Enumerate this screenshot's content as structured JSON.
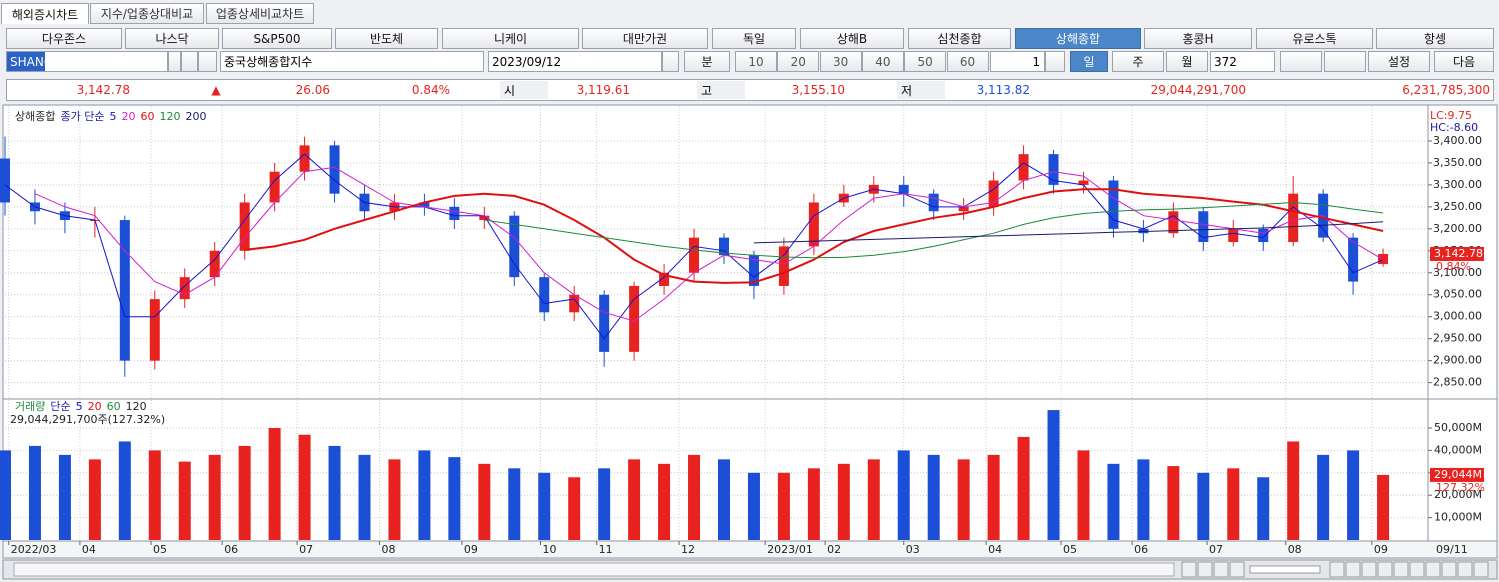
{
  "tabs": [
    "해외증시차트",
    "지수/업종상대비교",
    "업종상세비교차트"
  ],
  "indices": [
    {
      "label": "다우존스"
    },
    {
      "label": "나스닥"
    },
    {
      "label": "S&P500"
    },
    {
      "label": "반도체"
    },
    {
      "label": "니케이"
    },
    {
      "label": "대만가권"
    },
    {
      "label": "독일"
    },
    {
      "label": "상해B"
    },
    {
      "label": "심천종합"
    },
    {
      "label": "상해종합",
      "selected": true
    },
    {
      "label": "홍콩H"
    },
    {
      "label": "유로스톡"
    },
    {
      "label": "항셍"
    }
  ],
  "controls": {
    "symbol": "SHANG",
    "name": "중국상해종합지수",
    "date": "2023/09/12",
    "minute": "분",
    "intervals": [
      "10",
      "20",
      "30",
      "40",
      "50",
      "60"
    ],
    "tick_unit": "1",
    "periods": [
      {
        "label": "일",
        "selected": true
      },
      {
        "label": "주"
      },
      {
        "label": "월"
      }
    ],
    "count": "372",
    "settings": "설정",
    "next": "다음"
  },
  "quote": {
    "price": "3,142.78",
    "arrow": "▲",
    "change": "26.06",
    "change_pct": "0.84%",
    "open_label": "시",
    "open": "3,119.61",
    "high_label": "고",
    "high": "3,155.10",
    "low_label": "저",
    "low": "3,113.82",
    "volume": "29,044,291,700",
    "amount": "6,231,785,300"
  },
  "chart_data": [
    {
      "type": "candlestick",
      "name": "상해종합",
      "ma_label": "종가 단순",
      "up_color": "#e8231f",
      "down_color": "#1a4fd6",
      "x": [
        0,
        8,
        16,
        24,
        32,
        40,
        48,
        56,
        64,
        72,
        80,
        88,
        96,
        104,
        112,
        120,
        128,
        136,
        144,
        152,
        160,
        168,
        176,
        184,
        192,
        200,
        208,
        216,
        224,
        232,
        240,
        248,
        256,
        264,
        272,
        280,
        288,
        296,
        304,
        312,
        320,
        328,
        336,
        344,
        352,
        360,
        368
      ],
      "open": [
        3360,
        3260,
        3240,
        3220,
        3220,
        2900,
        3040,
        3090,
        3150,
        3260,
        3330,
        3390,
        3280,
        3240,
        3260,
        3250,
        3220,
        3230,
        3090,
        3010,
        3050,
        2920,
        3070,
        3100,
        3180,
        3140,
        3070,
        3160,
        3260,
        3280,
        3300,
        3280,
        3240,
        3250,
        3310,
        3370,
        3300,
        3310,
        3200,
        3190,
        3240,
        3170,
        3200,
        3170,
        3280,
        3180,
        3119.61
      ],
      "high": [
        3410,
        3290,
        3260,
        3250,
        3230,
        3060,
        3110,
        3170,
        3280,
        3350,
        3410,
        3400,
        3300,
        3280,
        3280,
        3270,
        3250,
        3240,
        3100,
        3070,
        3060,
        3080,
        3120,
        3200,
        3190,
        3150,
        3180,
        3280,
        3300,
        3320,
        3320,
        3290,
        3270,
        3330,
        3390,
        3380,
        3330,
        3320,
        3220,
        3260,
        3250,
        3220,
        3210,
        3320,
        3290,
        3190,
        3155.1
      ],
      "low": [
        3230,
        3210,
        3190,
        3180,
        2863,
        2880,
        3020,
        3070,
        3130,
        3240,
        3310,
        3260,
        3220,
        3220,
        3230,
        3200,
        3200,
        3070,
        2990,
        2990,
        2886,
        2900,
        3050,
        3080,
        3120,
        3040,
        3050,
        3140,
        3250,
        3260,
        3250,
        3220,
        3220,
        3230,
        3290,
        3280,
        3280,
        3180,
        3170,
        3180,
        3150,
        3160,
        3150,
        3160,
        3170,
        3050,
        3113.82
      ],
      "close": [
        3260,
        3240,
        3220,
        3220,
        2900,
        3040,
        3090,
        3150,
        3260,
        3330,
        3390,
        3280,
        3240,
        3260,
        3250,
        3220,
        3230,
        3090,
        3010,
        3050,
        2920,
        3070,
        3100,
        3180,
        3140,
        3070,
        3160,
        3260,
        3280,
        3300,
        3280,
        3240,
        3250,
        3310,
        3370,
        3300,
        3310,
        3200,
        3190,
        3240,
        3170,
        3200,
        3170,
        3280,
        3180,
        3080,
        3142.78
      ],
      "series": [
        {
          "name": "5",
          "color": "#1414d2",
          "values": [
            3300,
            3250,
            3230,
            3220,
            3000,
            3000,
            3070,
            3130,
            3220,
            3310,
            3370,
            3310,
            3260,
            3250,
            3250,
            3230,
            3230,
            3120,
            3030,
            3040,
            2950,
            3040,
            3090,
            3160,
            3150,
            3090,
            3140,
            3230,
            3270,
            3290,
            3280,
            3250,
            3250,
            3290,
            3350,
            3310,
            3300,
            3220,
            3200,
            3230,
            3180,
            3190,
            3180,
            3250,
            3200,
            3100,
            3130
          ]
        },
        {
          "name": "20",
          "color": "#d21ed2",
          "values": [
            null,
            3280,
            3250,
            3230,
            3150,
            3080,
            3050,
            3090,
            3180,
            3260,
            3330,
            3340,
            3300,
            3260,
            3250,
            3240,
            3230,
            3180,
            3100,
            3050,
            3010,
            2990,
            3040,
            3100,
            3140,
            3130,
            3120,
            3160,
            3220,
            3270,
            3280,
            3270,
            3250,
            3260,
            3310,
            3330,
            3320,
            3270,
            3230,
            3220,
            3210,
            3200,
            3190,
            3220,
            3230,
            3170,
            3130
          ]
        },
        {
          "name": "60",
          "color": "#e01010",
          "values": [
            null,
            null,
            null,
            null,
            null,
            null,
            null,
            null,
            3152,
            3160,
            3175,
            3200,
            3220,
            3240,
            3260,
            3275,
            3280,
            3275,
            3255,
            3220,
            3180,
            3130,
            3095,
            3080,
            3077,
            3078,
            3100,
            3130,
            3170,
            3195,
            3210,
            3225,
            3235,
            3250,
            3270,
            3285,
            3290,
            3290,
            3280,
            3275,
            3270,
            3262,
            3255,
            3240,
            3225,
            3210,
            3195
          ]
        },
        {
          "name": "120",
          "color": "#1a8a3a",
          "values": [
            null,
            null,
            null,
            null,
            null,
            null,
            null,
            null,
            null,
            null,
            null,
            null,
            null,
            null,
            null,
            null,
            3220,
            3210,
            3200,
            3190,
            3180,
            3170,
            3160,
            3152,
            3145,
            3140,
            3136,
            3134,
            3135,
            3140,
            3148,
            3160,
            3175,
            3190,
            3210,
            3225,
            3235,
            3240,
            3243,
            3245,
            3248,
            3252,
            3256,
            3260,
            3255,
            3245,
            3236
          ]
        },
        {
          "name": "200",
          "color": "#1a1a6e",
          "values": [
            null,
            null,
            null,
            null,
            null,
            null,
            null,
            null,
            null,
            null,
            null,
            null,
            null,
            null,
            null,
            null,
            null,
            null,
            null,
            null,
            null,
            null,
            null,
            null,
            null,
            3168,
            3170,
            3172,
            3174,
            3176,
            3178,
            3180,
            3182,
            3184,
            3186,
            3188,
            3190,
            3192,
            3194,
            3196,
            3198,
            3200,
            3202,
            3205,
            3208,
            3212,
            3216
          ]
        }
      ],
      "xlim": [
        0,
        380
      ],
      "ylim": [
        2815,
        3475
      ],
      "yticks": [
        {
          "value": 2850,
          "label": "2,850.00"
        },
        {
          "value": 2900,
          "label": "2,900.00"
        },
        {
          "value": 2950,
          "label": "2,950.00"
        },
        {
          "value": 3000,
          "label": "3,000.00"
        },
        {
          "value": 3050,
          "label": "3,050.00"
        },
        {
          "value": 3100,
          "label": "3,100.00"
        },
        {
          "value": 3150,
          "label": "3,150.00"
        },
        {
          "value": 3200,
          "label": "3,200.00"
        },
        {
          "value": 3250,
          "label": "3,250.00"
        },
        {
          "value": 3300,
          "label": "3,300.00"
        },
        {
          "value": 3350,
          "label": "3,350.00"
        },
        {
          "value": 3400,
          "label": "3,400.00"
        }
      ],
      "grid": true,
      "annotations": [
        "LC:9.75",
        "HC:-8.60"
      ],
      "last_value": {
        "value": 3142.78,
        "label": "3,142.78"
      },
      "last_change": "0.84%"
    },
    {
      "type": "bar",
      "title": "거래량",
      "ma_label": "단순",
      "ma_names": [
        {
          "name": "5",
          "color": "#1414d2"
        },
        {
          "name": "20",
          "color": "#e01010"
        },
        {
          "name": "60",
          "color": "#1a8a3a"
        },
        {
          "name": "120",
          "color": "#222222"
        }
      ],
      "subtitle": "29,044,291,700주(127.32%)",
      "x": [
        0,
        8,
        16,
        24,
        32,
        40,
        48,
        56,
        64,
        72,
        80,
        88,
        96,
        104,
        112,
        120,
        128,
        136,
        144,
        152,
        160,
        168,
        176,
        184,
        192,
        200,
        208,
        216,
        224,
        232,
        240,
        248,
        256,
        264,
        272,
        280,
        288,
        296,
        304,
        312,
        320,
        328,
        336,
        344,
        352,
        360,
        368
      ],
      "values": [
        40000,
        42000,
        38000,
        36000,
        44000,
        40000,
        35000,
        38000,
        42000,
        50000,
        47000,
        42000,
        38000,
        36000,
        40000,
        37000,
        34000,
        32000,
        30000,
        28000,
        32000,
        36000,
        34000,
        38000,
        36000,
        30000,
        30000,
        32000,
        34000,
        36000,
        40000,
        38000,
        36000,
        38000,
        46000,
        58000,
        40000,
        34000,
        36000,
        33000,
        30000,
        32000,
        28000,
        44000,
        38000,
        40000,
        29044
      ],
      "xlim": [
        0,
        380
      ],
      "ylim": [
        0,
        62500
      ],
      "yticks": [
        {
          "value": 10000,
          "label": "10,000M"
        },
        {
          "value": 20000,
          "label": "20,000M"
        },
        {
          "value": 30000,
          "label": "30,000M"
        },
        {
          "value": 40000,
          "label": "40,000M"
        },
        {
          "value": 50000,
          "label": "50,000M"
        }
      ],
      "xticks": [
        {
          "value": 1,
          "label": "2022/03"
        },
        {
          "value": 20,
          "label": "04"
        },
        {
          "value": 39,
          "label": "05"
        },
        {
          "value": 58,
          "label": "06"
        },
        {
          "value": 78,
          "label": "07"
        },
        {
          "value": 100,
          "label": "08"
        },
        {
          "value": 122,
          "label": "09"
        },
        {
          "value": 143,
          "label": "10"
        },
        {
          "value": 158,
          "label": "11"
        },
        {
          "value": 180,
          "label": "12"
        },
        {
          "value": 203,
          "label": "2023/01"
        },
        {
          "value": 219,
          "label": "02"
        },
        {
          "value": 240,
          "label": "03"
        },
        {
          "value": 262,
          "label": "04"
        },
        {
          "value": 282,
          "label": "05"
        },
        {
          "value": 301,
          "label": "06"
        },
        {
          "value": 321,
          "label": "07"
        },
        {
          "value": 342,
          "label": "08"
        },
        {
          "value": 365,
          "label": "09"
        }
      ],
      "cursor_label": "09/11",
      "last_value": {
        "value": 29044,
        "label": "29,044M"
      },
      "last_ratio": "127.32%"
    }
  ]
}
